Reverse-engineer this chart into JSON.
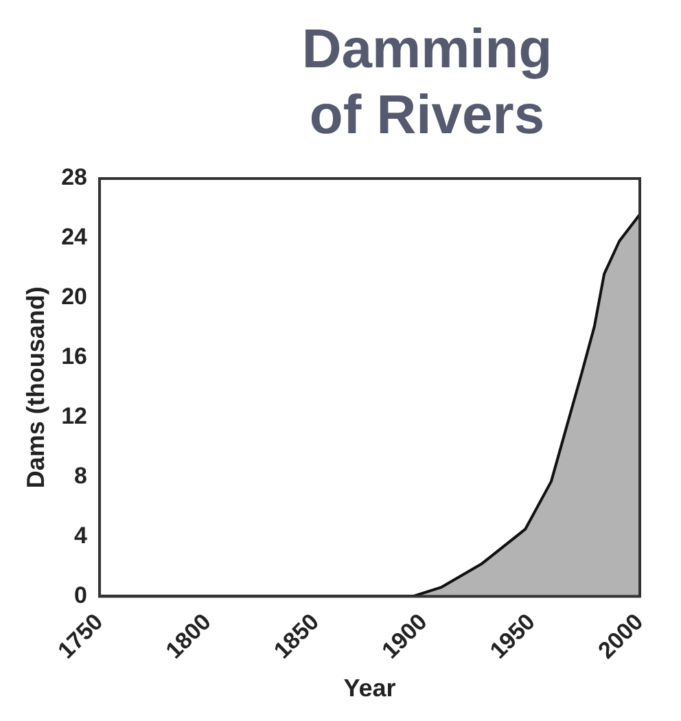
{
  "chart_data": {
    "type": "area",
    "title": "Damming of Rivers",
    "xlabel": "Year",
    "ylabel": "Dams (thousand)",
    "x": [
      1895,
      1908,
      1927,
      1947,
      1959,
      1966,
      1973,
      1979,
      1983.5,
      1990.5,
      2000
    ],
    "series": [
      {
        "color": "#b3b3b3",
        "values": [
          0,
          0.6,
          2.2,
          4.5,
          7.7,
          11.3,
          14.9,
          18.1,
          21.6,
          23.8,
          25.6
        ]
      }
    ],
    "xlim": [
      1750,
      2000
    ],
    "xticks": [
      1750,
      1800,
      1850,
      1900,
      1950,
      2000
    ],
    "ylim": [
      0,
      28
    ],
    "yticks": [
      0,
      4,
      8,
      12,
      16,
      20,
      24,
      28
    ],
    "grid": false,
    "legend": false
  }
}
